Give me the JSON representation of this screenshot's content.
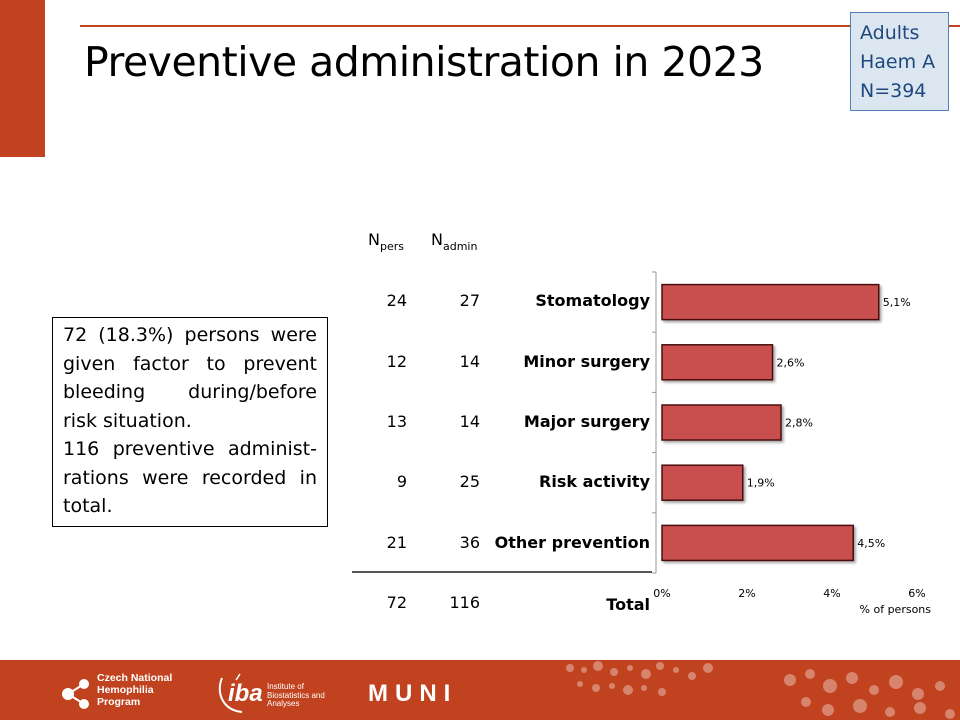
{
  "title": "Preventive administration in 2023",
  "cohort": {
    "line1": "Adults",
    "line2": "Haem A",
    "line3": "N=394"
  },
  "note": {
    "para1": "72 (18.3%) persons were given factor to prevent bleeding during/before risk situation.",
    "para2": "116 preventive administ-rations were recorded in total."
  },
  "table": {
    "col1_main": "N",
    "col1_sub": "pers",
    "col2_main": "N",
    "col2_sub": "admin",
    "rows": [
      {
        "category": "Stomatology",
        "n_pers": "24",
        "n_admin": "27"
      },
      {
        "category": "Minor surgery",
        "n_pers": "12",
        "n_admin": "14"
      },
      {
        "category": "Major surgery",
        "n_pers": "13",
        "n_admin": "14"
      },
      {
        "category": "Risk activity",
        "n_pers": "9",
        "n_admin": "25"
      },
      {
        "category": "Other prevention",
        "n_pers": "21",
        "n_admin": "36"
      }
    ],
    "total": {
      "category": "Total",
      "n_pers": "72",
      "n_admin": "116"
    }
  },
  "chart_data": {
    "type": "bar",
    "orientation": "horizontal",
    "categories": [
      "Stomatology",
      "Minor surgery",
      "Major surgery",
      "Risk activity",
      "Other prevention"
    ],
    "values": [
      5.1,
      2.6,
      2.8,
      1.9,
      4.5
    ],
    "data_labels": [
      "5,1%",
      "2,6%",
      "2,8%",
      "1,9%",
      "4,5%"
    ],
    "xlim": [
      0,
      6
    ],
    "xticks": [
      0,
      2,
      4,
      6
    ],
    "xtick_labels": [
      "0%",
      "2%",
      "4%",
      "6%"
    ],
    "xlabel": "% of persons",
    "grid": false,
    "bar_color": "#c9504f",
    "bar_border": "#4a1010"
  },
  "footer": {
    "logo1": "Czech National Hemophilia Program",
    "logo2_main": "iba",
    "logo2_sub": "Institute of Biostatistics and Analyses",
    "logo3": "MUNI",
    "color": "#c0421f"
  }
}
